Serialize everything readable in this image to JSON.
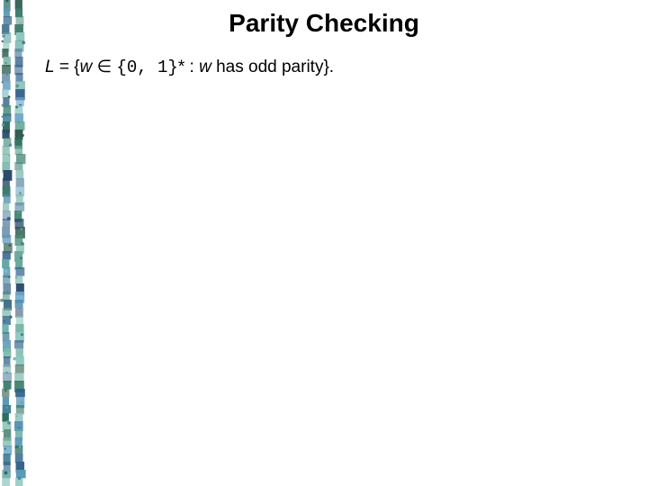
{
  "title": "Parity Checking",
  "def": {
    "L": "L",
    "eq": " = {",
    "w1": "w",
    "in": " ∈ ",
    "set": "{0, 1}",
    "star": "* : ",
    "w2": "w",
    "tail": " has odd parity}."
  },
  "strip": {
    "colors": [
      "#2a6b5a",
      "#5fa8a0",
      "#8fc7c0",
      "#3a7a90",
      "#2f5f8a",
      "#4a88b0",
      "#6fa8c8",
      "#2d5a4a",
      "#4a8a7a",
      "#7ab8aa",
      "#3a6a8a",
      "#5a9ab8",
      "#2a4a6a",
      "#3a7a6a",
      "#6aaa9a",
      "#4a7a9a"
    ]
  }
}
